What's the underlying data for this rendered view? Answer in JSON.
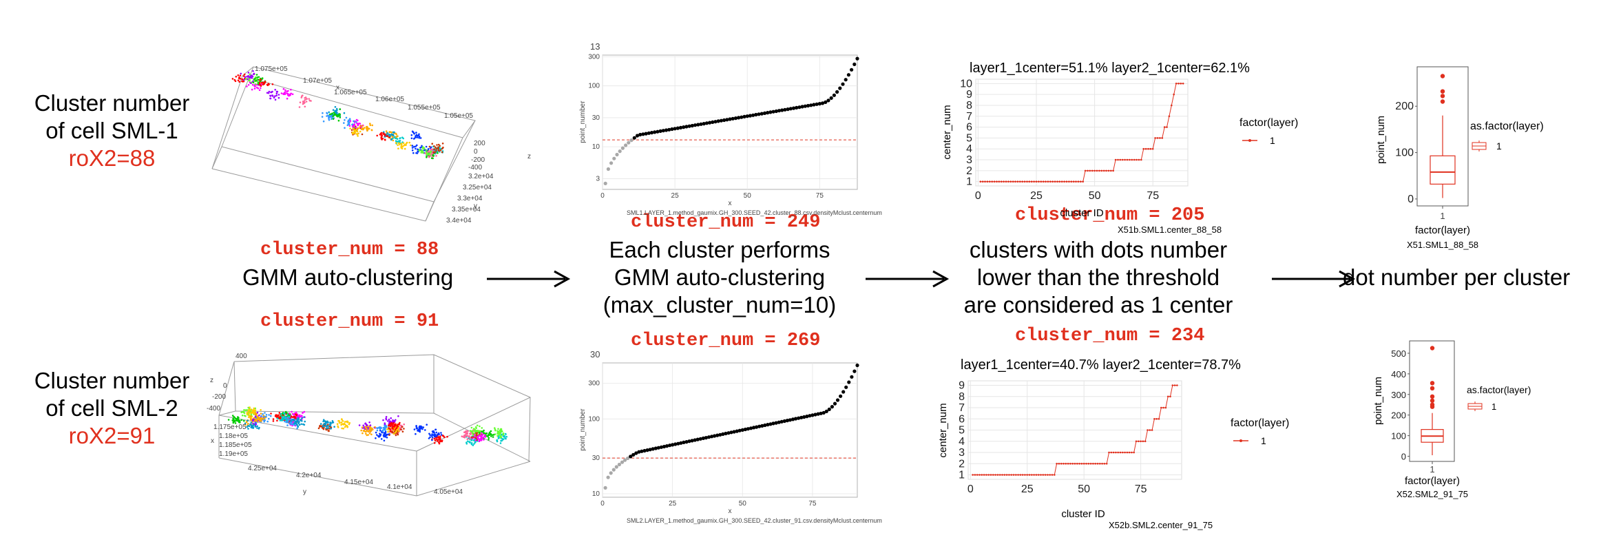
{
  "left": {
    "top": {
      "title_line1": "Cluster number",
      "title_line2": "of cell SML-1",
      "rox": "roX2=88"
    },
    "bottom": {
      "title_line1": "Cluster number",
      "title_line2": "of cell SML-2",
      "rox": "roX2=91"
    }
  },
  "cluster_nums": {
    "a": "cluster_num = 88",
    "b": "cluster_num = 91",
    "c": "cluster_num = 249",
    "d": "cluster_num = 269",
    "e": "cluster_num = 205",
    "f": "cluster_num = 234"
  },
  "steps": {
    "gmm": "GMM auto-clustering",
    "each_1": "Each cluster performs",
    "each_2": "GMM auto-clustering",
    "each_3": "(max_cluster_num=10)",
    "thr_1": "clusters with dots number",
    "thr_2": "lower than the threshold",
    "thr_3": "are considered as 1 center",
    "dot": "dot number per cluster"
  },
  "scatter3d": {
    "top": {
      "x_ticks": [
        "1.075e+05",
        "1.07e+05",
        "1.065e+05",
        "1.06e+05",
        "1.055e+05",
        "1.05e+05"
      ],
      "x_label": "x",
      "z_ticks": [
        "200",
        "0",
        "-200",
        "-400"
      ],
      "z_label": "z",
      "y_ticks": [
        "3.2e+04",
        "3.25e+04",
        "3.3e+04",
        "3.35e+04",
        "3.4e+04"
      ],
      "y_label": "y"
    },
    "bottom": {
      "z_ticks": [
        "400",
        "0",
        "-200",
        "-400"
      ],
      "z_label": "z",
      "x_ticks": [
        "1.175e+05",
        "1.18e+05",
        "1.185e+05",
        "1.19e+05"
      ],
      "x_label": "x",
      "y_ticks": [
        "4.25e+04",
        "4.2e+04",
        "4.15e+04",
        "4.1e+04",
        "4.05e+04"
      ],
      "y_label": "y"
    }
  },
  "chart_data": [
    {
      "id": "rank-top",
      "type": "scatter",
      "title": "13",
      "xlabel": "x",
      "ylabel": "point_number",
      "caption": "SML1.LAYER_1.method_gaumix.GH_300.SEED_42.cluster_88.csv.densityMclust.centernum",
      "x_ticks": [
        "0",
        "25",
        "50",
        "75"
      ],
      "y_ticks": [
        "3",
        "10",
        "30",
        "100",
        "300"
      ],
      "y_scale": "log",
      "xlim": [
        0,
        88
      ],
      "ylim": [
        2,
        320
      ],
      "threshold": 13,
      "n_points": 88,
      "y_range": [
        2.5,
        280
      ]
    },
    {
      "id": "rank-bottom",
      "type": "scatter",
      "title": "30",
      "xlabel": "x",
      "ylabel": "point_number",
      "caption": "SML2.LAYER_1.method_gaumix.GH_300.SEED_42.cluster_91.csv.densityMclust.centernum",
      "x_ticks": [
        "0",
        "25",
        "50",
        "75"
      ],
      "y_ticks": [
        "10",
        "30",
        "100",
        "300"
      ],
      "y_scale": "log",
      "xlim": [
        0,
        91
      ],
      "ylim": [
        9,
        560
      ],
      "threshold": 30,
      "n_points": 91,
      "y_range": [
        12,
        520
      ]
    },
    {
      "id": "center-top",
      "type": "line",
      "title": "layer1_1center=51.1% layer2_1center=62.1%",
      "xlabel": "cluster ID",
      "ylabel": "center_num",
      "caption": "X51b.SML1.center_88_58",
      "legend_title": "factor(layer)",
      "legend_item": "1",
      "x_ticks": [
        "0",
        "25",
        "50",
        "75"
      ],
      "y_ticks": [
        "1",
        "2",
        "3",
        "4",
        "5",
        "6",
        "7",
        "8",
        "9",
        "10"
      ],
      "xlim": [
        -1,
        90
      ],
      "ylim": [
        0.6,
        10.4
      ],
      "n": 88,
      "steps": [
        [
          45,
          1
        ],
        [
          58,
          2
        ],
        [
          70,
          3
        ],
        [
          75,
          4
        ],
        [
          79,
          5
        ],
        [
          81,
          6
        ],
        [
          82,
          7
        ],
        [
          83,
          8
        ],
        [
          84,
          9
        ],
        [
          88,
          10
        ]
      ]
    },
    {
      "id": "center-bottom",
      "type": "line",
      "title": "layer1_1center=40.7% layer2_1center=78.7%",
      "xlabel": "cluster ID",
      "ylabel": "center_num",
      "caption": "X52b.SML2.center_91_75",
      "legend_title": "factor(layer)",
      "legend_item": "1",
      "x_ticks": [
        "0",
        "25",
        "50",
        "75"
      ],
      "y_ticks": [
        "1",
        "2",
        "3",
        "4",
        "5",
        "6",
        "7",
        "8",
        "9"
      ],
      "xlim": [
        -1,
        93
      ],
      "ylim": [
        0.6,
        9.4
      ],
      "n": 91,
      "steps": [
        [
          37,
          1
        ],
        [
          60,
          2
        ],
        [
          72,
          3
        ],
        [
          77,
          4
        ],
        [
          80,
          5
        ],
        [
          83,
          6
        ],
        [
          86,
          7
        ],
        [
          88,
          8
        ],
        [
          91,
          9
        ]
      ]
    },
    {
      "id": "box-top",
      "type": "box",
      "xlabel": "factor(layer)",
      "ylabel": "point_num",
      "caption": "X51.SML1_88_58",
      "legend_title": "as.factor(layer)",
      "legend_item": "1",
      "category": "1",
      "y_ticks": [
        "0",
        "100",
        "200"
      ],
      "y_tick_values": [
        0,
        100,
        200
      ],
      "ylim": [
        -15,
        285
      ],
      "q1": 32,
      "median": 58,
      "q3": 93,
      "whisker_low": 2,
      "whisker_high": 180,
      "outliers": [
        265,
        232,
        222,
        210
      ]
    },
    {
      "id": "box-bottom",
      "type": "box",
      "xlabel": "factor(layer)",
      "ylabel": "point_num",
      "caption": "X52.SML2_91_75",
      "legend_title": "as.factor(layer)",
      "legend_item": "1",
      "category": "1",
      "y_ticks": [
        "0",
        "100",
        "200",
        "300",
        "400",
        "500"
      ],
      "y_tick_values": [
        0,
        100,
        200,
        300,
        400,
        500
      ],
      "ylim": [
        -25,
        560
      ],
      "q1": 68,
      "median": 98,
      "q3": 130,
      "whisker_low": 5,
      "whisker_high": 210,
      "outliers": [
        525,
        355,
        330,
        290,
        270,
        250,
        240
      ]
    }
  ],
  "colors": {
    "red": "#e0301e",
    "grid": "#e6e6e6",
    "gray_point": "#a8a8a8",
    "panel_border": "#b0b0b0"
  }
}
